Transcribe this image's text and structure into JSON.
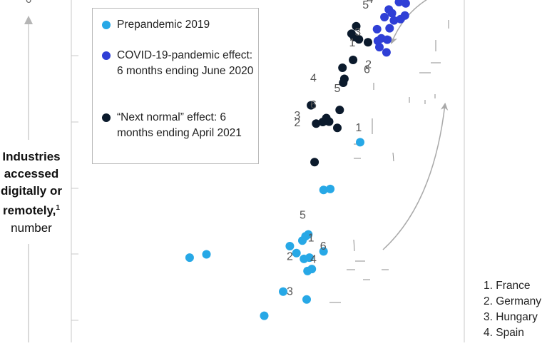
{
  "y_axis": {
    "label_bold": "Industries accessed digitally or remotely,",
    "label_lines": [
      "Industries",
      "accessed",
      "digitally or",
      "remotely,"
    ],
    "footnote_marker": "1",
    "unit": "number",
    "top_tick_partial": "6"
  },
  "legend": [
    {
      "name": "Prepandemic 2019",
      "color": "#27a8e6"
    },
    {
      "name": "COVID-19-pandemic effect: 6 months ending June 2020",
      "color": "#2f3fd6"
    },
    {
      "name": "“Next normal” effect: 6 months ending April 2021",
      "color": "#0b1a2c"
    }
  ],
  "country_key": [
    "1. France",
    "2. Germany",
    "3. Hungary",
    "4. Spain"
  ],
  "colors": {
    "prepandemic": "#27a8e6",
    "pandemic": "#2f3fd6",
    "next_normal": "#0b1a2c",
    "axis": "#c9c9c9",
    "arrow": "#a9a9a9",
    "leader": "#8c8c8c"
  },
  "chart_data": {
    "type": "scatter",
    "title": "",
    "xlabel": "",
    "ylabel": "Industries accessed digitally or remotely, number",
    "grid": false,
    "legend_position": "top-left",
    "xlim": [
      0,
      100
    ],
    "ylim": [
      0,
      100
    ],
    "series": [
      {
        "name": "Prepandemic 2019",
        "color": "#27a8e6",
        "points": [
          {
            "x": 30.1,
            "y": 21.6
          },
          {
            "x": 34.4,
            "y": 22.6
          },
          {
            "x": 49.1,
            "y": 3.8
          },
          {
            "x": 53.9,
            "y": 11.2
          },
          {
            "x": 55.6,
            "y": 25.1
          },
          {
            "x": 57.3,
            "y": 23.0
          },
          {
            "x": 58.8,
            "y": 26.8
          },
          {
            "x": 59.6,
            "y": 28.1
          },
          {
            "x": 60.3,
            "y": 28.7
          },
          {
            "x": 59.2,
            "y": 21.2
          },
          {
            "x": 60.1,
            "y": 17.5
          },
          {
            "x": 60.6,
            "y": 21.6
          },
          {
            "x": 61.2,
            "y": 18.1
          },
          {
            "x": 59.9,
            "y": 8.8
          },
          {
            "x": 64.2,
            "y": 23.5
          },
          {
            "x": 64.2,
            "y": 42.3
          },
          {
            "x": 65.9,
            "y": 42.6
          },
          {
            "x": 73.5,
            "y": 56.9
          }
        ]
      },
      {
        "name": "COVID-19-pandemic effect: 6 months ending June 2020",
        "color": "#2f3fd6",
        "points": [
          {
            "x": 78.9,
            "y": 88.7
          },
          {
            "x": 80.2,
            "y": 84.4
          },
          {
            "x": 81.0,
            "y": 91.8
          },
          {
            "x": 77.8,
            "y": 91.5
          },
          {
            "x": 78.0,
            "y": 87.9
          },
          {
            "x": 78.4,
            "y": 86.0
          },
          {
            "x": 79.7,
            "y": 95.2
          },
          {
            "x": 80.8,
            "y": 97.5
          },
          {
            "x": 81.6,
            "y": 96.4
          },
          {
            "x": 82.1,
            "y": 94.2
          },
          {
            "x": 83.4,
            "y": 99.8
          },
          {
            "x": 85.1,
            "y": 99.4
          },
          {
            "x": 82.1,
            "y": 102.6
          },
          {
            "x": 84.8,
            "y": 104.2
          },
          {
            "x": 87.0,
            "y": 103.6
          },
          {
            "x": 83.8,
            "y": 94.6
          },
          {
            "x": 84.9,
            "y": 95.7
          },
          {
            "x": 80.4,
            "y": 88.3
          }
        ]
      },
      {
        "name": "“Next normal” effect: 6 months ending April 2021",
        "color": "#0b1a2c",
        "points": [
          {
            "x": 61.9,
            "y": 50.8
          },
          {
            "x": 61.0,
            "y": 68.2
          },
          {
            "x": 62.3,
            "y": 62.6
          },
          {
            "x": 64.0,
            "y": 63.1
          },
          {
            "x": 64.5,
            "y": 63.4
          },
          {
            "x": 64.9,
            "y": 64.3
          },
          {
            "x": 65.6,
            "y": 63.2
          },
          {
            "x": 67.7,
            "y": 61.3
          },
          {
            "x": 68.3,
            "y": 66.8
          },
          {
            "x": 69.5,
            "y": 76.3
          },
          {
            "x": 69.2,
            "y": 75.1
          },
          {
            "x": 69.0,
            "y": 79.7
          },
          {
            "x": 71.3,
            "y": 90.1
          },
          {
            "x": 72.0,
            "y": 89.1
          },
          {
            "x": 72.5,
            "y": 92.4
          },
          {
            "x": 73.2,
            "y": 88.4
          },
          {
            "x": 75.5,
            "y": 87.5
          },
          {
            "x": 71.7,
            "y": 82.1
          }
        ]
      }
    ],
    "annotations": [
      {
        "label": "1",
        "x": 61.0,
        "y": 27.5
      },
      {
        "label": "2",
        "x": 55.6,
        "y": 21.8
      },
      {
        "label": "3",
        "x": 55.6,
        "y": 11.1
      },
      {
        "label": "4",
        "x": 61.6,
        "y": 21.0
      },
      {
        "label": "5",
        "x": 58.9,
        "y": 34.5
      },
      {
        "label": "6",
        "x": 64.1,
        "y": 25.0
      },
      {
        "label": "1",
        "x": 73.1,
        "y": 61.2
      },
      {
        "label": "2",
        "x": 57.5,
        "y": 62.8
      },
      {
        "label": "3",
        "x": 57.5,
        "y": 65.0
      },
      {
        "label": "4",
        "x": 61.6,
        "y": 76.4
      },
      {
        "label": "5",
        "x": 67.7,
        "y": 73.2
      },
      {
        "label": "6",
        "x": 61.6,
        "y": 68.2
      },
      {
        "label": "1",
        "x": 71.5,
        "y": 87.2
      },
      {
        "label": "2",
        "x": 75.6,
        "y": 80.6
      },
      {
        "label": "3",
        "x": 72.9,
        "y": 90.5
      },
      {
        "label": "4",
        "x": 76.0,
        "y": 100.6
      },
      {
        "label": "5",
        "x": 74.9,
        "y": 98.8
      },
      {
        "label": "6",
        "x": 75.2,
        "y": 79.0
      }
    ]
  }
}
